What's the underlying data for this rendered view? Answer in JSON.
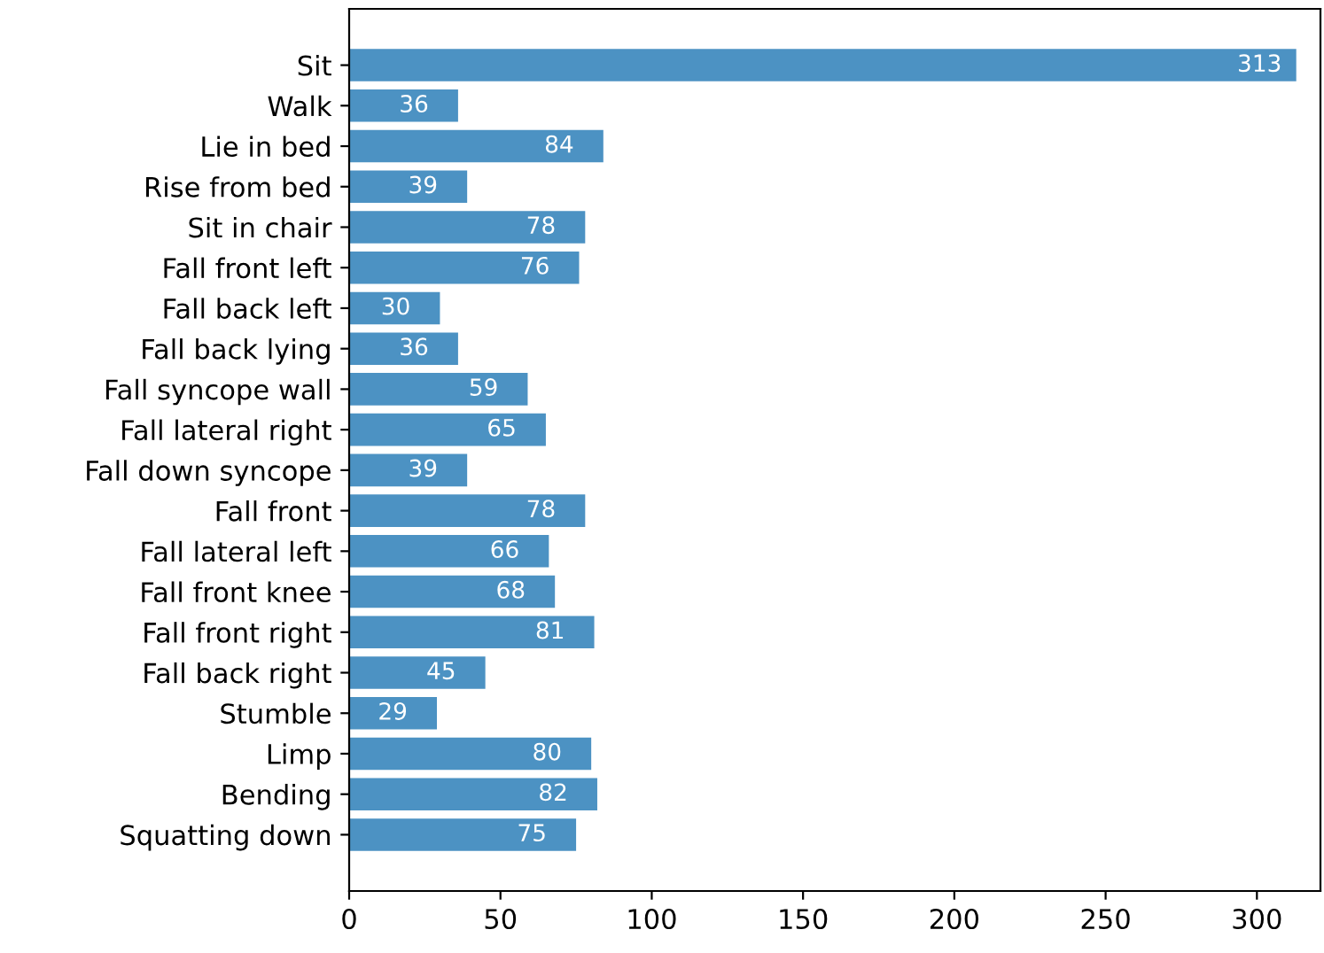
{
  "chart_data": {
    "type": "bar",
    "orientation": "horizontal",
    "categories": [
      "Sit",
      "Walk",
      "Lie in bed",
      "Rise from bed",
      "Sit in chair",
      "Fall front left",
      "Fall back left",
      "Fall back lying",
      "Fall syncope wall",
      "Fall lateral right",
      "Fall down syncope",
      "Fall front",
      "Fall lateral left",
      "Fall front knee",
      "Fall front right",
      "Fall back right",
      "Stumble",
      "Limp",
      "Bending",
      "Squatting down"
    ],
    "values": [
      313,
      36,
      84,
      39,
      78,
      76,
      30,
      36,
      59,
      65,
      39,
      78,
      66,
      68,
      81,
      45,
      29,
      80,
      82,
      75
    ],
    "color": "#4c92c3",
    "data_labels": true,
    "xlim": [
      0,
      321
    ],
    "xticks": [
      0,
      50,
      100,
      150,
      200,
      250,
      300
    ],
    "grid": false
  }
}
